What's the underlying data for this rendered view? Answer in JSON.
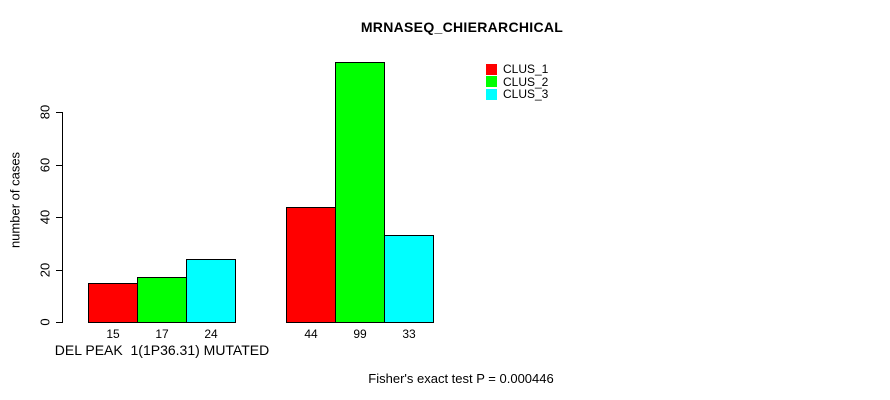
{
  "chart_data": {
    "type": "bar",
    "title": "MRNASEQ_CHIERARCHICAL",
    "ylabel": "number of cases",
    "annotation": "Fisher's exact test P = 0.000446",
    "categories": [
      "DEL PEAK  1(1P36.31) MUTATED",
      ""
    ],
    "series": [
      {
        "name": "CLUS_1",
        "color": "#ff0000",
        "values": [
          15,
          44
        ]
      },
      {
        "name": "CLUS_2",
        "color": "#00ff00",
        "values": [
          17,
          99
        ]
      },
      {
        "name": "CLUS_3",
        "color": "#00ffff",
        "values": [
          24,
          33
        ]
      }
    ],
    "yticks": [
      0,
      20,
      40,
      60,
      80
    ],
    "ylim": [
      0,
      101
    ],
    "grid": false,
    "legend_position": "top-right",
    "bar_border_color": "#000000",
    "axis_color": "#000000",
    "background_color": "#ffffff"
  }
}
